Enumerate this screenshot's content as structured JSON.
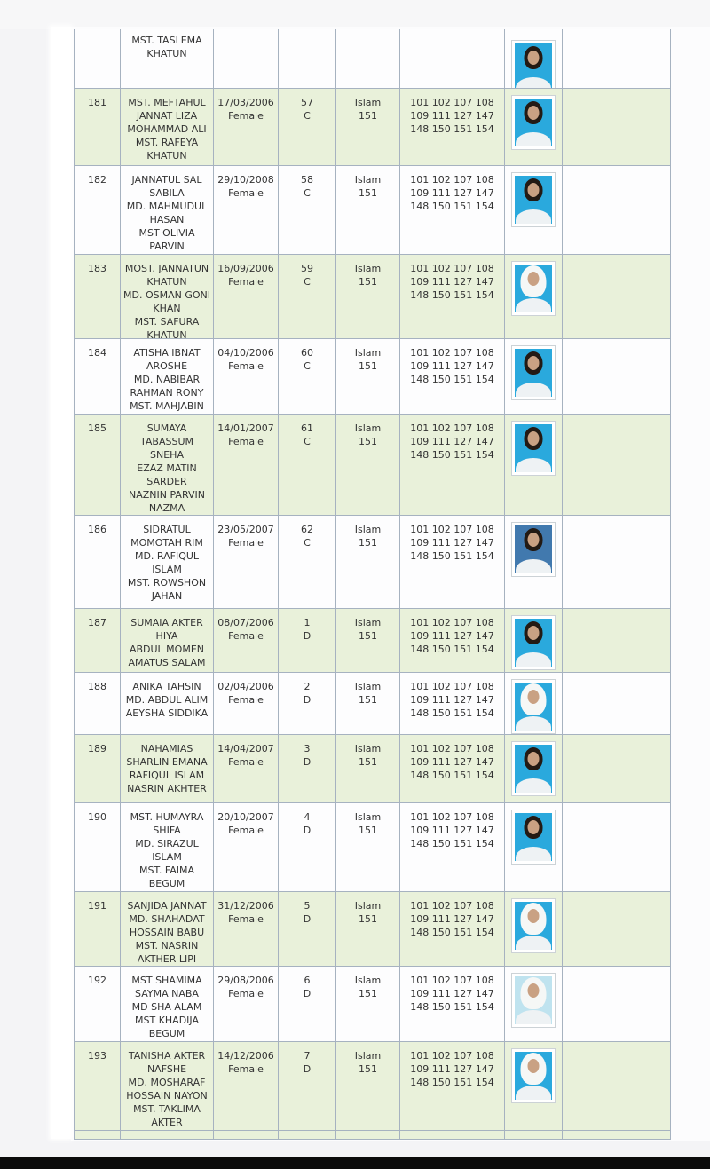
{
  "colors": {
    "row_shaded": "#e9f1da",
    "row_plain": "#fdfdfe",
    "border": "#a6b2c0",
    "photo_bg_default": "#2aa9dd",
    "photo_bg_dark": "#4179ae",
    "photo_bg_pale": "#bfe3ef",
    "bottom_bar": "#0b0b0b"
  },
  "table": {
    "shared_subject_lines": [
      "101 102 107 108",
      "109 111 127 147",
      "148 150 151 154"
    ],
    "partial_top_row": {
      "name_lines": [
        "MST. TASLEMA",
        "KHATUN"
      ],
      "photo_variant": "hair",
      "photo_bg": "#2aa9dd"
    },
    "rows": [
      {
        "serial": "181",
        "name_lines": [
          "MST. MEFTAHUL",
          "JANNAT LIZA",
          "MOHAMMAD ALI",
          "MST. RAFEYA",
          "KHATUN"
        ],
        "dob": "17/03/2006",
        "gender": "Female",
        "roll": "57",
        "section": "C",
        "religion": "Islam",
        "religion_code": "151",
        "photo_variant": "hair",
        "photo_bg": "#2aa9dd"
      },
      {
        "serial": "182",
        "name_lines": [
          "JANNATUL SAL",
          "SABILA",
          "MD. MAHMUDUL",
          "HASAN",
          "MST OLIVIA",
          "PARVIN"
        ],
        "dob": "29/10/2008",
        "gender": "Female",
        "roll": "58",
        "section": "C",
        "religion": "Islam",
        "religion_code": "151",
        "photo_variant": "hair",
        "photo_bg": "#2aa9dd"
      },
      {
        "serial": "183",
        "name_lines": [
          "MOST. JANNATUN",
          "KHATUN",
          "MD. OSMAN GONI",
          "KHAN",
          "MST. SAFURA",
          "KHATUN"
        ],
        "dob": "16/09/2006",
        "gender": "Female",
        "roll": "59",
        "section": "C",
        "religion": "Islam",
        "religion_code": "151",
        "photo_variant": "hijab",
        "photo_bg": "#2aa9dd"
      },
      {
        "serial": "184",
        "name_lines": [
          "ATISHA IBNAT",
          "AROSHE",
          "MD. NABIBAR",
          "RAHMAN RONY",
          "MST. MAHJABIN"
        ],
        "dob": "04/10/2006",
        "gender": "Female",
        "roll": "60",
        "section": "C",
        "religion": "Islam",
        "religion_code": "151",
        "photo_variant": "hair",
        "photo_bg": "#2aa9dd"
      },
      {
        "serial": "185",
        "name_lines": [
          "SUMAYA",
          "TABASSUM",
          "SNEHA",
          "EZAZ MATIN",
          "SARDER",
          "NAZNIN PARVIN",
          "NAZMA"
        ],
        "dob": "14/01/2007",
        "gender": "Female",
        "roll": "61",
        "section": "C",
        "religion": "Islam",
        "religion_code": "151",
        "photo_variant": "hair",
        "photo_bg": "#2aa9dd"
      },
      {
        "serial": "186",
        "name_lines": [
          "SIDRATUL",
          "MOMOTAH RIM",
          "MD. RAFIQUL",
          "ISLAM",
          "MST. ROWSHON",
          "JAHAN"
        ],
        "dob": "23/05/2007",
        "gender": "Female",
        "roll": "62",
        "section": "C",
        "religion": "Islam",
        "religion_code": "151",
        "photo_variant": "hair",
        "photo_bg": "#4179ae"
      },
      {
        "serial": "187",
        "name_lines": [
          "SUMAIA AKTER",
          "HIYA",
          "ABDUL MOMEN",
          "AMATUS SALAM"
        ],
        "dob": "08/07/2006",
        "gender": "Female",
        "roll": "1",
        "section": "D",
        "religion": "Islam",
        "religion_code": "151",
        "photo_variant": "hair",
        "photo_bg": "#2aa9dd"
      },
      {
        "serial": "188",
        "name_lines": [
          "ANIKA TAHSIN",
          "MD. ABDUL ALIM",
          "AEYSHA SIDDIKA"
        ],
        "dob": "02/04/2006",
        "gender": "Female",
        "roll": "2",
        "section": "D",
        "religion": "Islam",
        "religion_code": "151",
        "photo_variant": "hijab",
        "photo_bg": "#2aa9dd"
      },
      {
        "serial": "189",
        "name_lines": [
          "NAHAMIAS",
          "SHARLIN EMANA",
          "RAFIQUL ISLAM",
          "NASRIN AKHTER"
        ],
        "dob": "14/04/2007",
        "gender": "Female",
        "roll": "3",
        "section": "D",
        "religion": "Islam",
        "religion_code": "151",
        "photo_variant": "hair",
        "photo_bg": "#2aa9dd"
      },
      {
        "serial": "190",
        "name_lines": [
          "MST. HUMAYRA",
          "SHIFA",
          "MD. SIRAZUL",
          "ISLAM",
          "MST. FAIMA",
          "BEGUM"
        ],
        "dob": "20/10/2007",
        "gender": "Female",
        "roll": "4",
        "section": "D",
        "religion": "Islam",
        "religion_code": "151",
        "photo_variant": "hair",
        "photo_bg": "#2aa9dd"
      },
      {
        "serial": "191",
        "name_lines": [
          "SANJIDA JANNAT",
          "MD. SHAHADAT",
          "HOSSAIN BABU",
          "MST. NASRIN",
          "AKTHER LIPI"
        ],
        "dob": "31/12/2006",
        "gender": "Female",
        "roll": "5",
        "section": "D",
        "religion": "Islam",
        "religion_code": "151",
        "photo_variant": "hijab",
        "photo_bg": "#2aa9dd"
      },
      {
        "serial": "192",
        "name_lines": [
          "MST SHAMIMA",
          "SAYMA NABA",
          "MD SHA ALAM",
          "MST KHADIJA",
          "BEGUM"
        ],
        "dob": "29/08/2006",
        "gender": "Female",
        "roll": "6",
        "section": "D",
        "religion": "Islam",
        "religion_code": "151",
        "photo_variant": "hijab",
        "photo_bg": "#bfe3ef"
      },
      {
        "serial": "193",
        "name_lines": [
          "TANISHA AKTER",
          "NAFSHE",
          "MD. MOSHARAF",
          "HOSSAIN NAYON",
          "MST. TAKLIMA",
          "AKTER"
        ],
        "dob": "14/12/2006",
        "gender": "Female",
        "roll": "7",
        "section": "D",
        "religion": "Islam",
        "religion_code": "151",
        "photo_variant": "hijab",
        "photo_bg": "#2aa9dd"
      }
    ]
  }
}
